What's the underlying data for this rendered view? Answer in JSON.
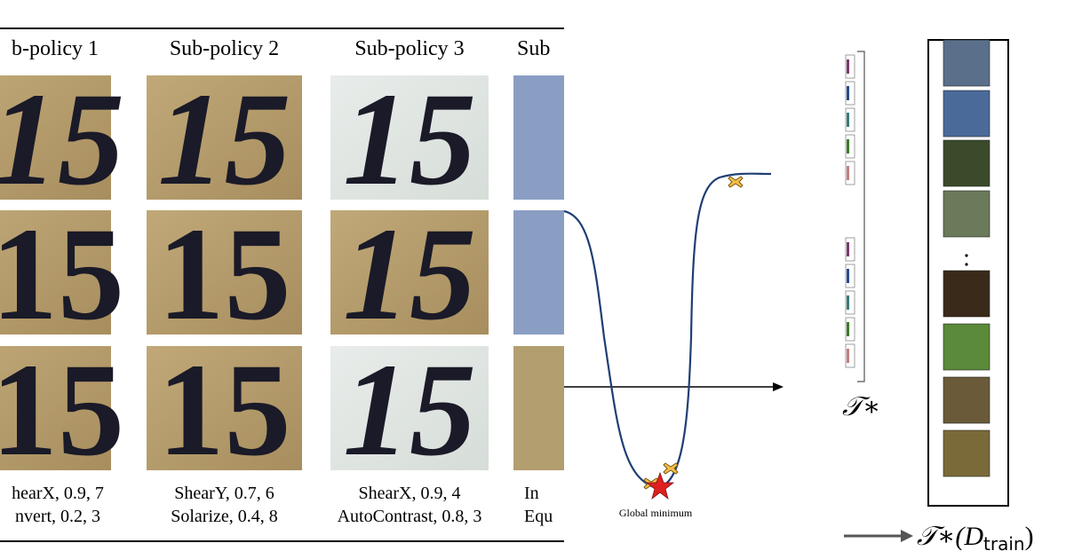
{
  "table": {
    "headers": [
      "b-policy 1",
      "Sub-policy 2",
      "Sub-policy 3",
      "Sub"
    ],
    "digits": "15",
    "captions": [
      [
        "hearX, 0.9, 7",
        "nvert, 0.2, 3"
      ],
      [
        "ShearY, 0.7, 6",
        "Solarize, 0.4, 8"
      ],
      [
        "ShearX, 0.9, 4",
        "AutoContrast, 0.8, 3"
      ],
      [
        "In",
        "Equ"
      ]
    ]
  },
  "plot": {
    "annotation": "Global minimum"
  },
  "policy_label": "𝒯∗",
  "output_label": {
    "head": "𝒯∗(D",
    "sub": "train",
    "close": ")"
  }
}
